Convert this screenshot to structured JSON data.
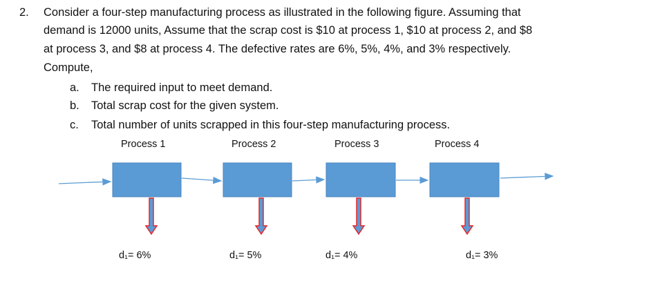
{
  "question": {
    "number": "2.",
    "lines": [
      "Consider a four-step manufacturing process as illustrated in the following figure. Assuming that",
      "demand is 12000 units, Assume that the scrap cost is $10 at process 1, $10 at process 2, and $8",
      "at process 3, and $8 at process 4. The defective rates are 6%, 5%, 4%, and 3% respectively.",
      "Compute,"
    ],
    "items": [
      {
        "marker": "a.",
        "text": "The required input to meet demand."
      },
      {
        "marker": "b.",
        "text": "Total scrap cost for the given system."
      },
      {
        "marker": "c.",
        "text": "Total number of units scrapped in this four-step manufacturing process."
      }
    ]
  },
  "diagram": {
    "processes": [
      {
        "label": "Process 1",
        "defect": "d₁= 6%"
      },
      {
        "label": "Process 2",
        "defect": "d₁= 5%"
      },
      {
        "label": "Process 3",
        "defect": "d₁= 4%"
      },
      {
        "label": "Process 4",
        "defect": "d₁= 3%"
      }
    ]
  }
}
